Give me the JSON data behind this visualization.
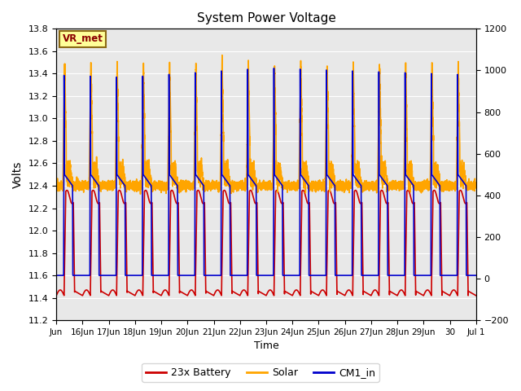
{
  "title": "System Power Voltage",
  "xlabel": "Time",
  "ylabel_left": "Volts",
  "ylim_left": [
    11.2,
    13.8
  ],
  "ylim_right": [
    -200,
    1200
  ],
  "yticks_left": [
    11.2,
    11.4,
    11.6,
    11.8,
    12.0,
    12.2,
    12.4,
    12.6,
    12.8,
    13.0,
    13.2,
    13.4,
    13.6,
    13.8
  ],
  "yticks_right": [
    -200,
    0,
    200,
    400,
    600,
    800,
    1000,
    1200
  ],
  "xtick_labels": [
    "Jun",
    "16Jun",
    "17Jun",
    "18Jun",
    "19Jun",
    "20Jun",
    "21Jun",
    "22Jun",
    "23Jun",
    "24Jun",
    "25Jun",
    "26Jun",
    "27Jun",
    "28Jun",
    "29Jun",
    "30",
    "Jul 1"
  ],
  "annotation_text": "VR_met",
  "annotation_box_facecolor": "#FFFF99",
  "annotation_box_edgecolor": "#8B6914",
  "bg_color": "#E8E8E8",
  "grid_color": "white",
  "legend_labels": [
    "23x Battery",
    "Solar",
    "CM1_in"
  ],
  "legend_colors": [
    "#CC0000",
    "#FFA500",
    "#0000CC"
  ],
  "line_width": 1.2,
  "num_days": 16
}
